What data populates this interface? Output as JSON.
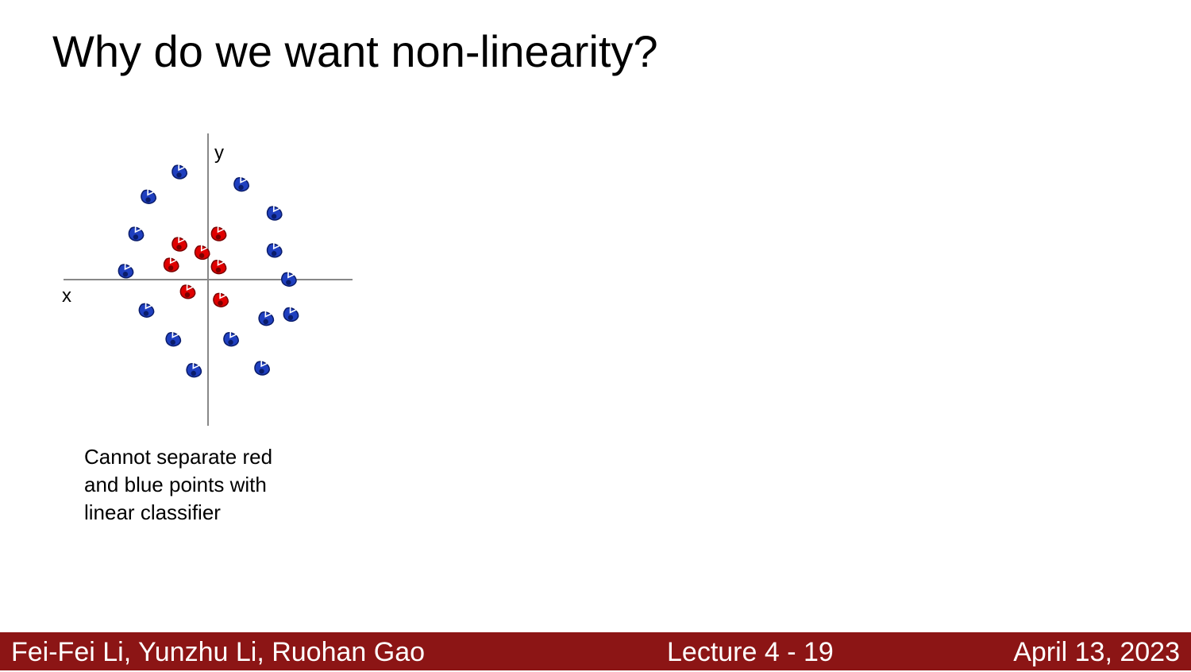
{
  "slide": {
    "title": "Why do we want non-linearity?",
    "caption_lines": [
      "Cannot separate red",
      "and blue points with",
      "linear classifier"
    ]
  },
  "chart_data": {
    "type": "scatter",
    "xlabel": "x",
    "ylabel": "y",
    "xlim": [
      -7,
      7
    ],
    "ylim": [
      -7,
      7
    ],
    "grid": false,
    "colors": {
      "red": "#e00000",
      "blue": "#1f3fbf",
      "axis": "#888888"
    },
    "series": [
      {
        "color": "red",
        "points": [
          [
            -1.4,
            1.7
          ],
          [
            0.5,
            2.2
          ],
          [
            -0.3,
            1.3
          ],
          [
            -1.8,
            0.7
          ],
          [
            0.5,
            0.6
          ],
          [
            -1.0,
            -0.6
          ],
          [
            0.6,
            -1.0
          ]
        ]
      },
      {
        "color": "blue",
        "points": [
          [
            -1.4,
            5.2
          ],
          [
            1.6,
            4.6
          ],
          [
            -2.9,
            4.0
          ],
          [
            3.2,
            3.2
          ],
          [
            -3.5,
            2.2
          ],
          [
            3.2,
            1.4
          ],
          [
            -4.0,
            0.4
          ],
          [
            3.9,
            0.0
          ],
          [
            -3.0,
            -1.5
          ],
          [
            2.8,
            -1.9
          ],
          [
            4.0,
            -1.7
          ],
          [
            -1.7,
            -2.9
          ],
          [
            1.1,
            -2.9
          ],
          [
            -0.7,
            -4.4
          ],
          [
            2.6,
            -4.3
          ]
        ]
      }
    ]
  },
  "footer": {
    "authors": "Fei-Fei Li, Yunzhu Li, Ruohan Gao",
    "lecture": "Lecture 4 -   19",
    "date": "April 13, 2023",
    "bg_color": "#8c1515"
  }
}
